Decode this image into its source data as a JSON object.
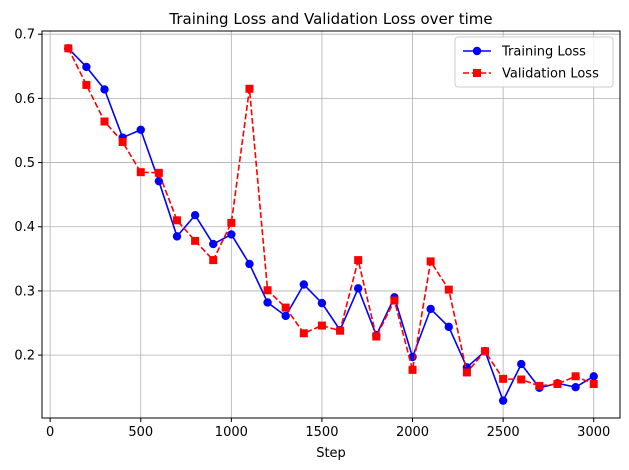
{
  "chart_data": {
    "type": "line",
    "title": "Training Loss and Validation Loss over time",
    "xlabel": "Step",
    "ylabel": "",
    "xlim": [
      -45,
      3145
    ],
    "ylim": [
      0.102,
      0.705
    ],
    "xticks": [
      0,
      500,
      1000,
      1500,
      2000,
      2500,
      3000
    ],
    "yticks": [
      0.2,
      0.3,
      0.4,
      0.5,
      0.6,
      0.7
    ],
    "ytick_labels": [
      "0.2",
      "0.3",
      "0.4",
      "0.5",
      "0.6",
      "0.7"
    ],
    "grid": true,
    "legend_position": "top-right",
    "x": [
      100,
      200,
      300,
      400,
      500,
      600,
      700,
      800,
      900,
      1000,
      1100,
      1200,
      1300,
      1400,
      1500,
      1600,
      1700,
      1800,
      1900,
      2000,
      2100,
      2200,
      2300,
      2400,
      2500,
      2600,
      2700,
      2800,
      2900,
      3000
    ],
    "series": [
      {
        "name": "Training Loss",
        "color": "#0000ff",
        "line_style": "solid",
        "marker": "circle",
        "values": [
          0.678,
          0.649,
          0.614,
          0.539,
          0.551,
          0.471,
          0.385,
          0.418,
          0.373,
          0.388,
          0.342,
          0.282,
          0.261,
          0.31,
          0.281,
          0.239,
          0.304,
          0.231,
          0.29,
          0.197,
          0.272,
          0.244,
          0.181,
          0.206,
          0.129,
          0.186,
          0.149,
          0.156,
          0.15,
          0.167
        ]
      },
      {
        "name": "Validation Loss",
        "color": "#ff0000",
        "line_style": "dashed",
        "marker": "square",
        "values": [
          0.678,
          0.621,
          0.564,
          0.532,
          0.485,
          0.484,
          0.41,
          0.378,
          0.348,
          0.406,
          0.615,
          0.301,
          0.274,
          0.234,
          0.246,
          0.238,
          0.348,
          0.229,
          0.285,
          0.177,
          0.346,
          0.302,
          0.173,
          0.206,
          0.163,
          0.162,
          0.152,
          0.155,
          0.167,
          0.155
        ]
      }
    ]
  }
}
